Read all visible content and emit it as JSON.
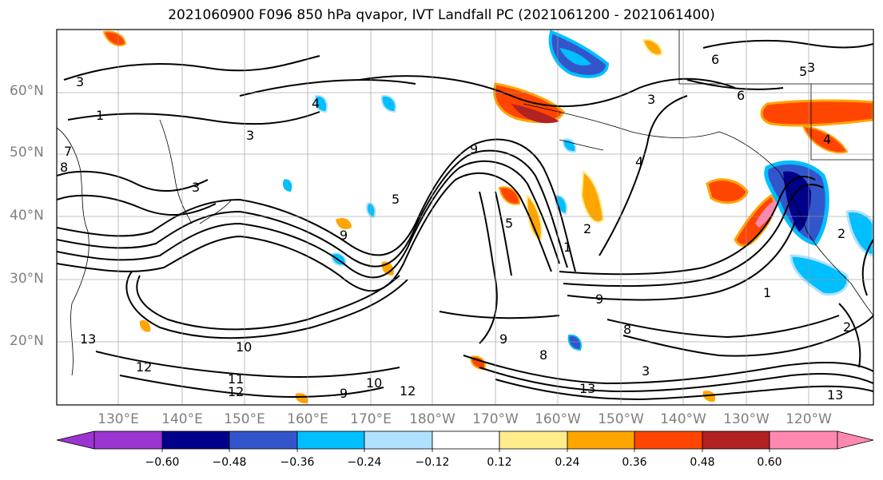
{
  "title": "2021060900 F096 850 hPa qvapor, IVT Landfall PC (2021061200 - 2021061400)",
  "lat_labels": [
    "60°N",
    "50°N",
    "40°N",
    "30°N",
    "20°N"
  ],
  "lon_labels": [
    "130°E",
    "140°E",
    "150°E",
    "160°E",
    "170°E",
    "180°W",
    "170°W",
    "160°W",
    "150°W",
    "140°W",
    "130°W",
    "120°W"
  ],
  "colorbar": {
    "colors": [
      "#9a35d1",
      "#00008a",
      "#3355cc",
      "#00bfff",
      "#b0e2ff",
      "#ffffff",
      "#ffec8b",
      "#ffa500",
      "#ff4500",
      "#b22222",
      "#ff88b0"
    ],
    "tick_labels": [
      "−0.60",
      "−0.48",
      "−0.36",
      "−0.24",
      "−0.12",
      "0.12",
      "0.24",
      "0.36",
      "0.48",
      "0.60"
    ]
  },
  "contour_labels": [
    "3",
    "3",
    "1",
    "7",
    "8",
    "5",
    "5",
    "4",
    "3",
    "9",
    "9",
    "1",
    "3",
    "2",
    "4",
    "13",
    "12",
    "10",
    "11",
    "12",
    "9",
    "10",
    "12",
    "8",
    "8",
    "9",
    "13",
    "13",
    "3",
    "6",
    "5",
    "6",
    "1",
    "2",
    "4",
    "2",
    "9",
    "3"
  ]
}
